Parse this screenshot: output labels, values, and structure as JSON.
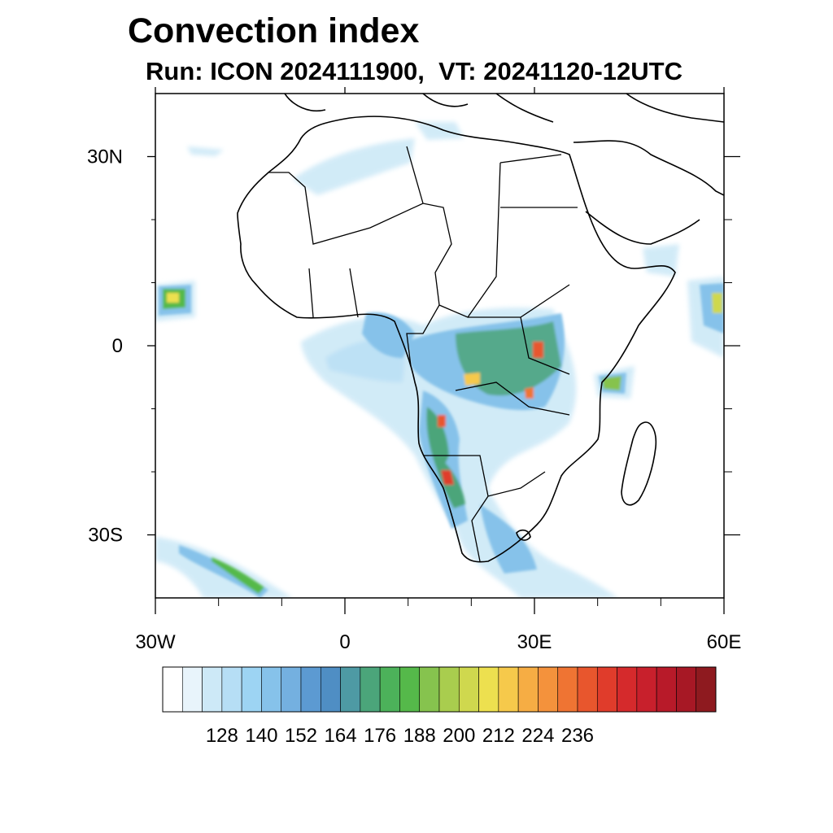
{
  "title": "Convection index",
  "subtitle": "Run: ICON 2024111900,  VT: 20241120-12UTC",
  "map": {
    "lon_range": [
      -30,
      60
    ],
    "lat_range": [
      -40,
      40
    ],
    "lat_ticks": [
      {
        "value": 30,
        "label": "30N"
      },
      {
        "value": 0,
        "label": "0"
      },
      {
        "value": -30,
        "label": "30S"
      }
    ],
    "lon_ticks": [
      {
        "value": -30,
        "label": "30W"
      },
      {
        "value": 0,
        "label": "0"
      },
      {
        "value": 30,
        "label": "30E"
      },
      {
        "value": 60,
        "label": "60E"
      }
    ],
    "minor_lon_ticks": [
      -20,
      -10,
      10,
      20,
      40,
      50
    ],
    "minor_lat_ticks": [
      20,
      10,
      -10,
      -20
    ]
  },
  "colorbar": {
    "colors": [
      "#ffffff",
      "#e8f4fb",
      "#cde9f7",
      "#b6def5",
      "#9dd4f3",
      "#86c2ea",
      "#74b0e0",
      "#5c9ad2",
      "#4f8ec4",
      "#4e9aa4",
      "#4ba57a",
      "#4cb25a",
      "#55b94a",
      "#86c34e",
      "#a9cd4e",
      "#cfd84e",
      "#ede04f",
      "#f6c94b",
      "#f6ad44",
      "#f4923c",
      "#ef7433",
      "#e8562d",
      "#e03c2b",
      "#d52a2c",
      "#c8202c",
      "#b81a29",
      "#a71825",
      "#8e1a1f"
    ],
    "labels": [
      "128",
      "140",
      "152",
      "164",
      "176",
      "188",
      "200",
      "212",
      "224",
      "236"
    ]
  }
}
